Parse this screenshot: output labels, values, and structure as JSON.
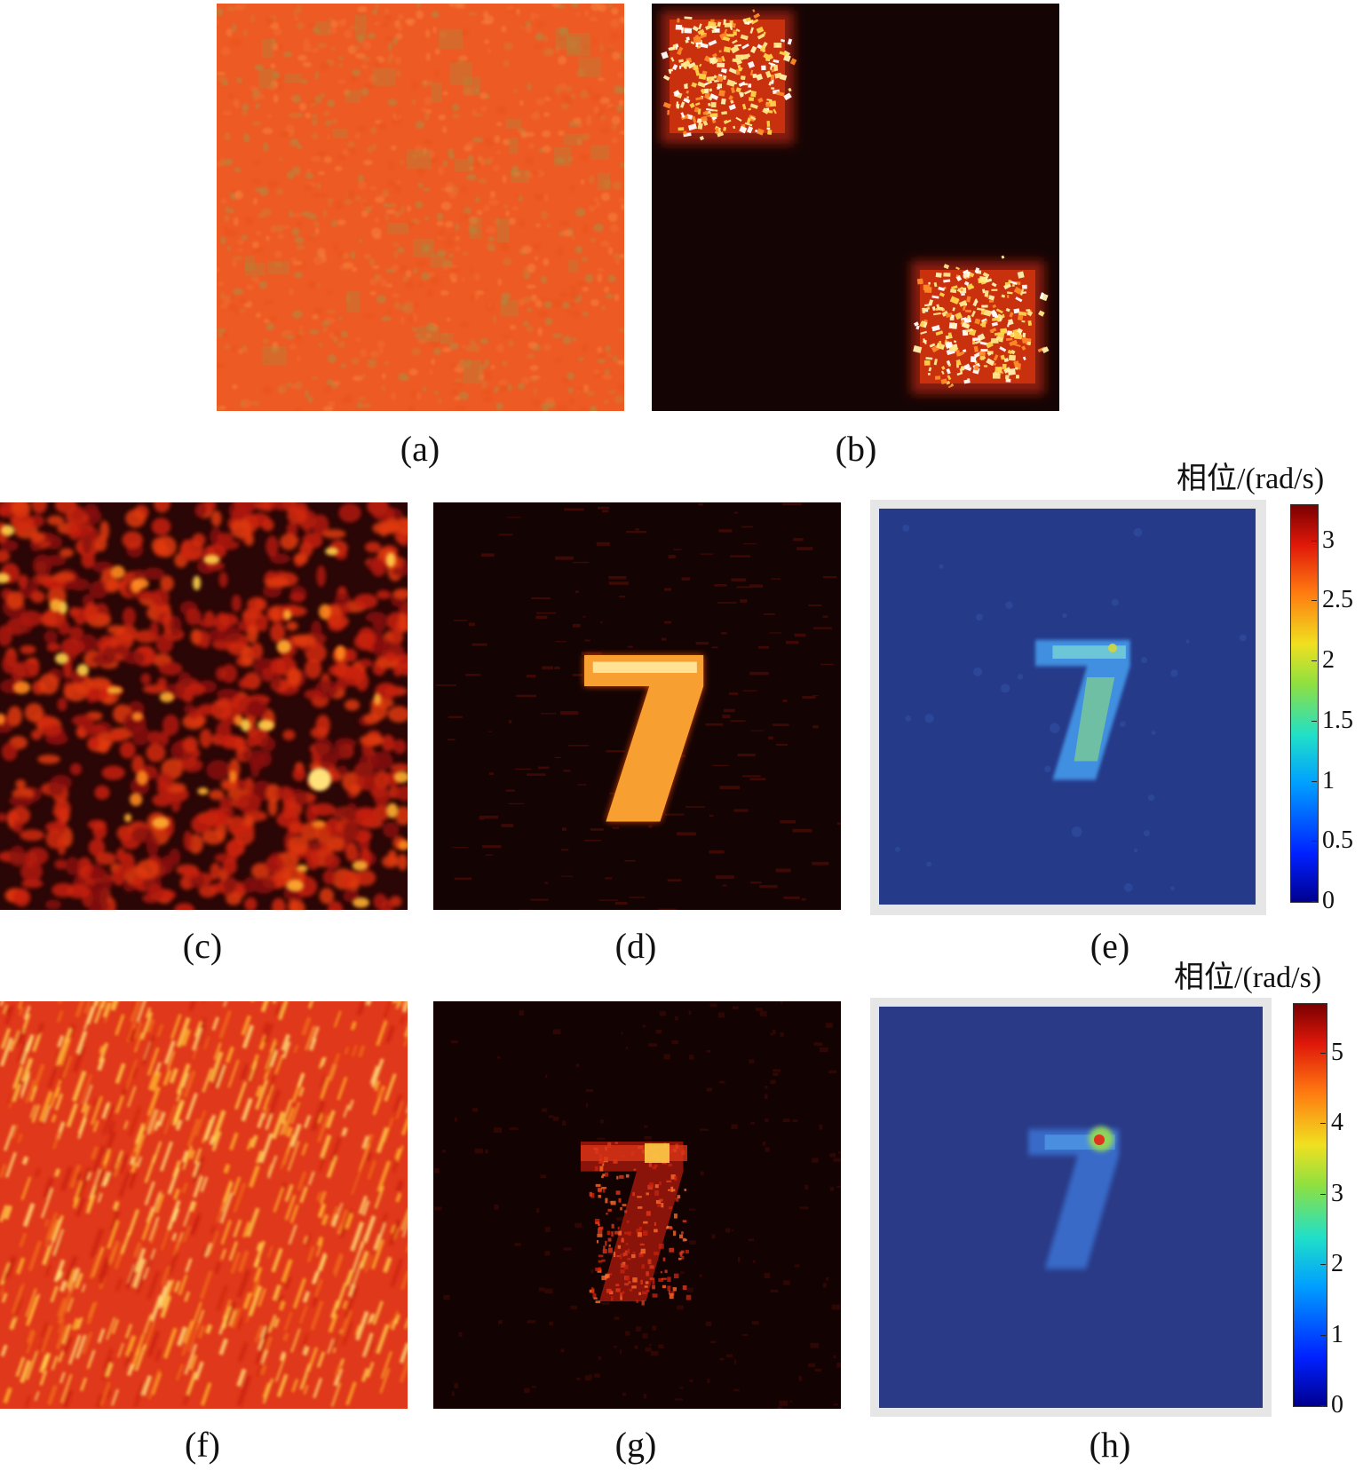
{
  "figure": {
    "panels": [
      {
        "id": "a",
        "label": "(a)",
        "description_name": "speckle-orange-uniform"
      },
      {
        "id": "b",
        "label": "(b)",
        "description_name": "two-bright-squares"
      },
      {
        "id": "c",
        "label": "(c)",
        "description_name": "speckle-hot"
      },
      {
        "id": "d",
        "label": "(d)",
        "description_name": "digit-seven-hot"
      },
      {
        "id": "e",
        "label": "(e)",
        "description_name": "digit-seven-phase-jet"
      },
      {
        "id": "f",
        "label": "(f)",
        "description_name": "speckle-streaked"
      },
      {
        "id": "g",
        "label": "(g)",
        "description_name": "digit-seven-noisy"
      },
      {
        "id": "h",
        "label": "(h)",
        "description_name": "digit-seven-phase-jet-2"
      }
    ],
    "digit": "7",
    "colorbar_e": {
      "title": "相位/(rad/s)",
      "ticks": [
        "3",
        "2.5",
        "2",
        "1.5",
        "1",
        "0.5",
        "0"
      ],
      "tick_values": [
        3,
        2.5,
        2,
        1.5,
        1,
        0.5,
        0
      ],
      "range": [
        0,
        3.3
      ]
    },
    "colorbar_h": {
      "title": "相位/(rad/s)",
      "ticks": [
        "5",
        "4",
        "3",
        "2",
        "1",
        "0"
      ],
      "tick_values": [
        5,
        4,
        3,
        2,
        1,
        0
      ],
      "range": [
        0,
        5.7
      ]
    },
    "colors": {
      "hot_dark": "#1a0505",
      "hot_mid": "#c8200c",
      "hot_bright": "#ffd34a",
      "orange_bg": "#ee5a24",
      "jet_bg": "#263a8a",
      "jet_low": "#3f8fe0",
      "jet_mid": "#8fd35a",
      "jet_high": "#e0321e"
    }
  }
}
